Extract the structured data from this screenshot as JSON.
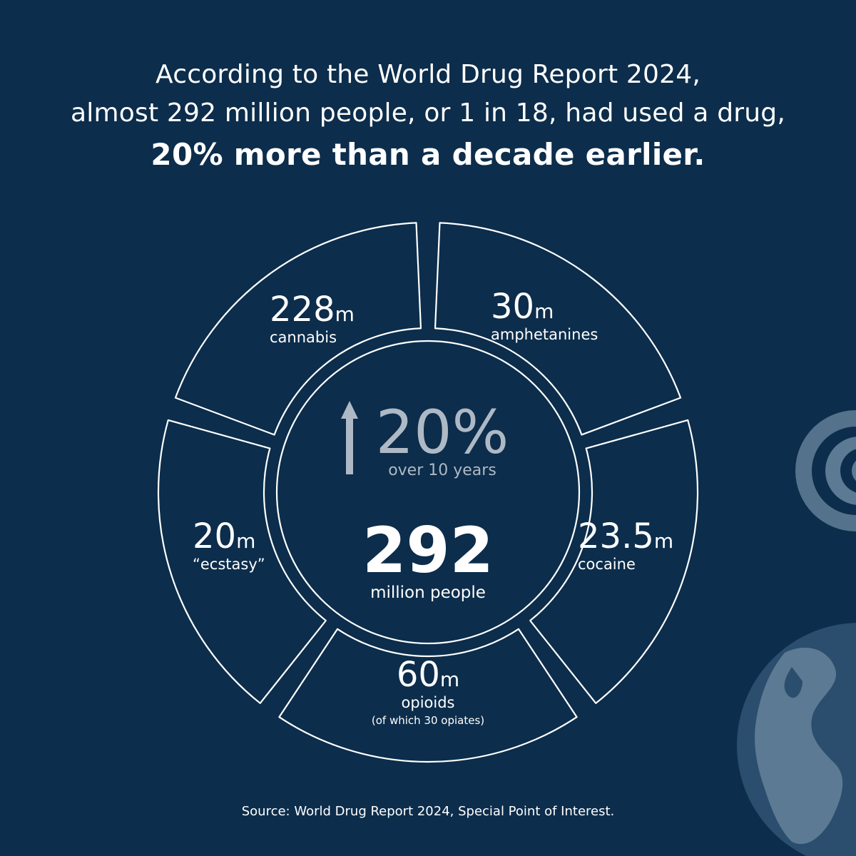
{
  "header": {
    "line1": "According to the World Drug Report 2024,",
    "line2": "almost 292 million people, or 1 in 18, had used a drug,",
    "line3": "20% more than a decade earlier."
  },
  "center": {
    "growth_value": "20%",
    "growth_caption": "over 10 years",
    "total_value": "292",
    "total_caption": "million people"
  },
  "chart_data": {
    "type": "pie",
    "unit": "m",
    "segments": [
      {
        "label": "cannabis",
        "value": 228,
        "display": "228"
      },
      {
        "label": "amphetanines",
        "value": 30,
        "display": "30"
      },
      {
        "label": "cocaine",
        "value": 23.5,
        "display": "23.5"
      },
      {
        "label": "opioids",
        "value": 60,
        "display": "60",
        "note": "(of which 30 opiates)"
      },
      {
        "label": "“ecstasy”",
        "value": 20,
        "display": "20"
      }
    ],
    "total": {
      "value": 292,
      "caption": "million people"
    },
    "growth": {
      "value": "20%",
      "caption": "over 10 years"
    }
  },
  "colors": {
    "background": "#0c2d4b",
    "outline": "#ffffff",
    "muted_text": "#aeb9c5",
    "decor": "#5d7a94"
  },
  "footer": {
    "source": "Source: World Drug Report 2024, Special Point of Interest."
  }
}
